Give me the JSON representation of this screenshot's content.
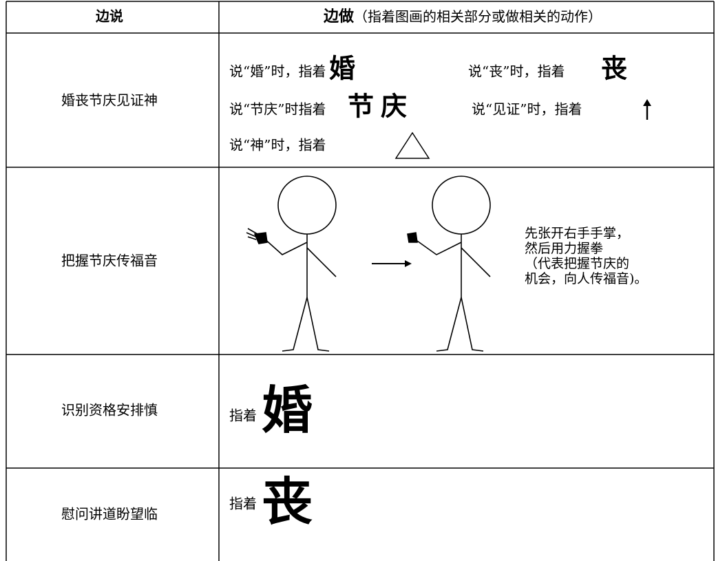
{
  "table": {
    "header": {
      "say": "边说",
      "do_bold": "边做",
      "do_note": "（指着图画的相关部分或做相关的动作）"
    },
    "rows": [
      {
        "say": "婚丧节庆见证神",
        "do": {
          "line1": [
            "说“婚”时，指着",
            "婚",
            "说“丧”时，指着",
            "丧"
          ],
          "line2": [
            "说“节庆”时指着",
            "节庆",
            "说“见证”时，指着"
          ],
          "line3": [
            "说“神”时，指着"
          ]
        }
      },
      {
        "say": "把握节庆传福音",
        "do": {
          "caption": [
            "先张开右手手掌，",
            "然后用力握拳",
            "（代表把握节庆的",
            "机会，向人传福音)。"
          ]
        }
      },
      {
        "say": "识别资格安排慎",
        "do": {
          "text": "指着",
          "glyph": "婚"
        }
      },
      {
        "say": "慰问讲道盼望临",
        "do": {
          "text": "指着",
          "glyph": "丧"
        }
      }
    ]
  }
}
